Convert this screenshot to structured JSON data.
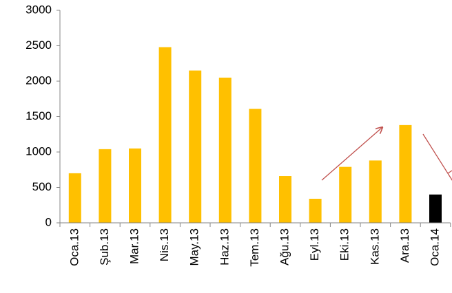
{
  "chart_data": {
    "type": "bar",
    "categories": [
      "Oca.13",
      "Şub.13",
      "Mar.13",
      "Nis.13",
      "May.13",
      "Haz.13",
      "Tem.13",
      "Ağu.13",
      "Eyl.13",
      "Eki.13",
      "Kas.13",
      "Ara.13",
      "Oca.14"
    ],
    "values": [
      700,
      1040,
      1050,
      2480,
      2150,
      2050,
      1610,
      660,
      340,
      790,
      880,
      1380,
      400
    ],
    "colors": [
      "#ffc000",
      "#ffc000",
      "#ffc000",
      "#ffc000",
      "#ffc000",
      "#ffc000",
      "#ffc000",
      "#ffc000",
      "#ffc000",
      "#ffc000",
      "#ffc000",
      "#ffc000",
      "#000000"
    ],
    "ylim": [
      0,
      3000
    ],
    "yticks": [
      0,
      500,
      1000,
      1500,
      2000,
      2500,
      3000
    ],
    "grid": false
  }
}
